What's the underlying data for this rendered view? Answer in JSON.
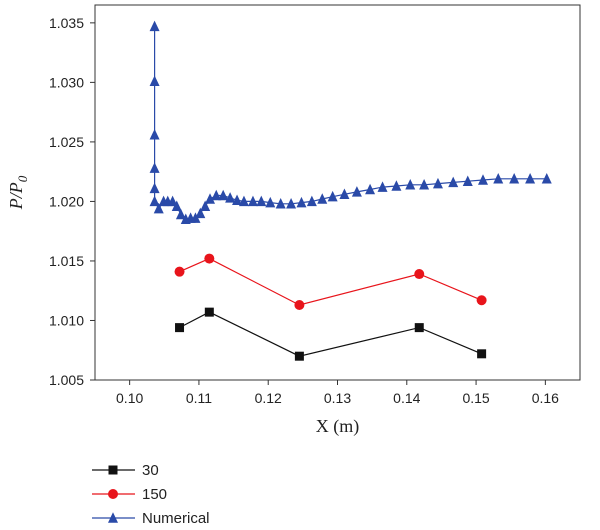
{
  "chart_data": {
    "type": "line",
    "xlabel": "X (m)",
    "ylabel_main": "P/P",
    "ylabel_sub": "0",
    "xlim": [
      0.095,
      0.165
    ],
    "ylim": [
      1.005,
      1.0365
    ],
    "xticks": [
      0.1,
      0.11,
      0.12,
      0.13,
      0.14,
      0.15,
      0.16
    ],
    "xtick_labels": [
      "0.10",
      "0.11",
      "0.12",
      "0.13",
      "0.14",
      "0.15",
      "0.16"
    ],
    "yticks": [
      1.005,
      1.01,
      1.015,
      1.02,
      1.025,
      1.03,
      1.035
    ],
    "ytick_labels": [
      "1.005",
      "1.010",
      "1.015",
      "1.020",
      "1.025",
      "1.030",
      "1.035"
    ],
    "grid": false,
    "legend_position": "below-left",
    "series": [
      {
        "name": "30",
        "color": "#111111",
        "marker": "square",
        "x": [
          0.1072,
          0.1115,
          0.1245,
          0.1418,
          0.1508
        ],
        "y": [
          1.0094,
          1.0107,
          1.007,
          1.0094,
          1.0072
        ]
      },
      {
        "name": "150",
        "color": "#e8141b",
        "marker": "circle",
        "x": [
          0.1072,
          0.1115,
          0.1245,
          0.1418,
          0.1508
        ],
        "y": [
          1.0141,
          1.0152,
          1.0113,
          1.0139,
          1.0117
        ]
      },
      {
        "name": "Numerical",
        "color": "#2a4aa8",
        "marker": "triangle",
        "x": [
          0.1036,
          0.1036,
          0.1036,
          0.1036,
          0.1036,
          0.1036,
          0.1042,
          0.1049,
          0.1055,
          0.1062,
          0.1068,
          0.1074,
          0.1081,
          0.1088,
          0.1095,
          0.1102,
          0.1109,
          0.1116,
          0.1125,
          0.1135,
          0.1145,
          0.1155,
          0.1165,
          0.1178,
          0.119,
          0.1203,
          0.1218,
          0.1233,
          0.1248,
          0.1263,
          0.1278,
          0.1293,
          0.131,
          0.1328,
          0.1347,
          0.1365,
          0.1385,
          0.1405,
          0.1425,
          0.1445,
          0.1467,
          0.1488,
          0.151,
          0.1532,
          0.1555,
          0.1578,
          0.1602
        ],
        "y": [
          1.0347,
          1.0301,
          1.0256,
          1.0228,
          1.0211,
          1.02,
          1.0194,
          1.02,
          1.02,
          1.02,
          1.0196,
          1.0189,
          1.0185,
          1.0186,
          1.0186,
          1.019,
          1.0196,
          1.0202,
          1.0205,
          1.0205,
          1.0203,
          1.0201,
          1.02,
          1.02,
          1.02,
          1.0199,
          1.0198,
          1.0198,
          1.0199,
          1.02,
          1.0202,
          1.0204,
          1.0206,
          1.0208,
          1.021,
          1.0212,
          1.0213,
          1.0214,
          1.0214,
          1.0215,
          1.0216,
          1.0217,
          1.0218,
          1.0219,
          1.0219,
          1.0219,
          1.0219
        ]
      }
    ]
  }
}
